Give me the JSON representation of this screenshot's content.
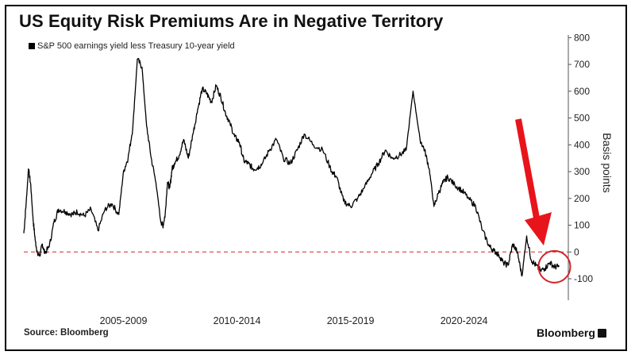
{
  "title": "US Equity Risk Premiums Are in Negative Territory",
  "footer": {
    "source": "Source: Bloomberg",
    "brand": "Bloomberg"
  },
  "chart_data": {
    "type": "line",
    "title": "US Equity Risk Premiums Are in Negative Territory",
    "ylabel": "Basis points",
    "xlabel": "",
    "ylim": [
      -180,
      810
    ],
    "xlim": [
      2002.7,
      2026.2
    ],
    "y_ticks": [
      -100,
      0,
      100,
      200,
      300,
      400,
      500,
      600,
      700,
      800
    ],
    "x_tick_labels": [
      "2005-2009",
      "2010-2014",
      "2015-2019",
      "2020-2024"
    ],
    "x_tick_centers": [
      2007.0,
      2011.9,
      2016.8,
      2021.7
    ],
    "legend": [
      "S&P 500 earnings yield less Treasury 10-year yield"
    ],
    "reference_line": {
      "y": 0,
      "color": "#d9534f",
      "style": "dashed"
    },
    "annotations": [
      {
        "type": "arrow",
        "color": "#e8141b",
        "target_date": 2025.0,
        "target_value": 30
      },
      {
        "type": "circle",
        "color": "#d2232a",
        "center_date": 2025.6,
        "center_value": -55
      }
    ],
    "series": [
      {
        "name": "S&P 500 earnings yield less Treasury 10-year yield",
        "color": "#000000",
        "x": [
          2002.7,
          2002.8,
          2002.9,
          2003.0,
          2003.1,
          2003.2,
          2003.3,
          2003.4,
          2003.5,
          2003.6,
          2003.8,
          2004.0,
          2004.2,
          2004.5,
          2004.8,
          2005.0,
          2005.3,
          2005.6,
          2005.9,
          2006.2,
          2006.5,
          2006.8,
          2007.0,
          2007.2,
          2007.4,
          2007.6,
          2007.8,
          2008.0,
          2008.2,
          2008.4,
          2008.6,
          2008.7,
          2008.8,
          2008.9,
          2009.0,
          2009.1,
          2009.2,
          2009.4,
          2009.6,
          2009.8,
          2010.0,
          2010.2,
          2010.4,
          2010.6,
          2010.8,
          2011.0,
          2011.2,
          2011.4,
          2011.6,
          2011.8,
          2012.0,
          2012.2,
          2012.4,
          2012.6,
          2012.8,
          2013.0,
          2013.3,
          2013.6,
          2013.9,
          2014.2,
          2014.5,
          2014.8,
          2015.2,
          2015.6,
          2016.0,
          2016.2,
          2016.5,
          2016.8,
          2017.1,
          2017.4,
          2017.7,
          2018.0,
          2018.3,
          2018.6,
          2018.9,
          2019.2,
          2019.5,
          2019.8,
          2020.0,
          2020.2,
          2020.4,
          2020.6,
          2020.8,
          2021.0,
          2021.3,
          2021.6,
          2021.9,
          2022.2,
          2022.5,
          2022.8,
          2023.0,
          2023.2,
          2023.4,
          2023.6,
          2023.8,
          2024.0,
          2024.2,
          2024.4,
          2024.6,
          2024.8,
          2025.0,
          2025.2,
          2025.4,
          2025.6,
          2025.8
        ],
        "y": [
          70,
          180,
          310,
          250,
          120,
          40,
          -10,
          -10,
          30,
          -5,
          20,
          110,
          160,
          150,
          140,
          150,
          135,
          160,
          80,
          160,
          180,
          140,
          300,
          350,
          460,
          720,
          690,
          470,
          350,
          260,
          120,
          95,
          140,
          260,
          240,
          310,
          330,
          360,
          420,
          350,
          440,
          530,
          610,
          590,
          560,
          620,
          580,
          520,
          480,
          430,
          410,
          340,
          330,
          310,
          315,
          330,
          380,
          420,
          350,
          330,
          380,
          440,
          400,
          380,
          300,
          280,
          190,
          170,
          200,
          240,
          290,
          330,
          380,
          350,
          360,
          380,
          600,
          420,
          380,
          310,
          170,
          220,
          260,
          280,
          250,
          230,
          200,
          170,
          80,
          20,
          5,
          -10,
          -40,
          -50,
          30,
          0,
          -90,
          60,
          -30,
          -50,
          -70,
          -60,
          -40,
          -55,
          -55
        ]
      }
    ]
  }
}
